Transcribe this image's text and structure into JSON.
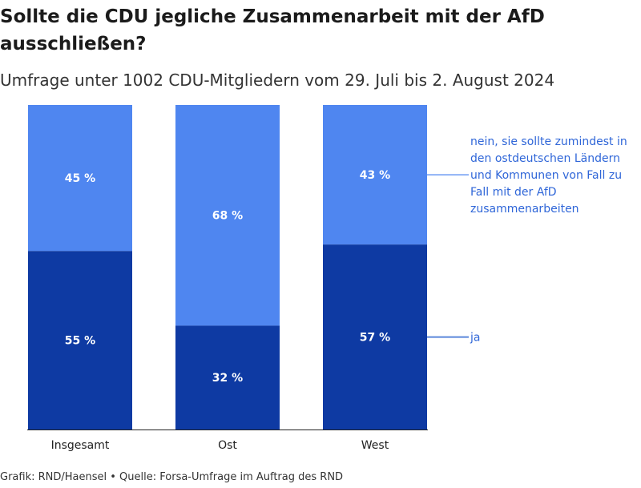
{
  "title": "Sollte die CDU jegliche Zusammenarbeit mit der AfD ausschließen?",
  "subtitle": "Umfrage unter 1002 CDU-Mitgliedern vom 29. Juli bis 2. August 2024",
  "source": "Grafik: RND/Haensel • Quelle: Forsa-Umfrage im Auftrag des RND",
  "colors": {
    "ja": "#0e3aa3",
    "nein": "#4f86f0",
    "legend_text": "#2f66d8"
  },
  "chart_data": {
    "type": "bar",
    "stacked": true,
    "percent": true,
    "categories": [
      "Insgesamt",
      "Ost",
      "West"
    ],
    "series": [
      {
        "name": "ja",
        "values": [
          55,
          32,
          57
        ],
        "labels": [
          "55 %",
          "32 %",
          "57 %"
        ]
      },
      {
        "name": "nein, sie sollte zumindest in den ostdeutschen Ländern und Kommunen von Fall zu Fall mit der AfD zusammenarbeiten",
        "values": [
          45,
          68,
          43
        ],
        "labels": [
          "45 %",
          "68 %",
          "43 %"
        ]
      }
    ],
    "ylim": [
      0,
      100
    ],
    "legend_placement": "right",
    "legend_lines": {
      "nein": [
        "nein, sie sollte zumindest in",
        "den ostdeutschen Ländern",
        "und Kommunen von Fall zu",
        "Fall mit der AfD",
        "zusammenarbeiten"
      ],
      "ja": [
        "ja"
      ]
    }
  }
}
